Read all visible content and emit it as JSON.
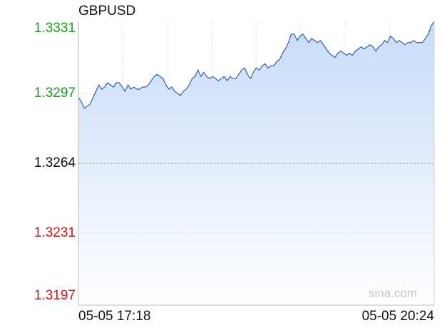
{
  "chart_data": {
    "type": "area-line",
    "title": "GBPUSD",
    "categories": [
      "05-05 17:18",
      null,
      null,
      null,
      null,
      null,
      null,
      null,
      null,
      null,
      null,
      null,
      null,
      null,
      null,
      null,
      null,
      null,
      null,
      null,
      null,
      null,
      null,
      null,
      null,
      null,
      null,
      null,
      null,
      null,
      null,
      null,
      null,
      null,
      null,
      null,
      null,
      null,
      null,
      null,
      null,
      null,
      null,
      null,
      null,
      null,
      null,
      null,
      null,
      null,
      null,
      null,
      null,
      null,
      null,
      null,
      null,
      null,
      null,
      null,
      null,
      null,
      null,
      null,
      null,
      null,
      null,
      null,
      null,
      null,
      null,
      null,
      null,
      null,
      null,
      null,
      null,
      null,
      null,
      null,
      null,
      null,
      null,
      null,
      null,
      null,
      null,
      null,
      null,
      null,
      null,
      null,
      null,
      null,
      null,
      null,
      null,
      null,
      null,
      null,
      null,
      null,
      null,
      null,
      null,
      null,
      null,
      null,
      null,
      null,
      null,
      null,
      null,
      null,
      null,
      null,
      null,
      null,
      null,
      null,
      null,
      null,
      "05-05 20:24"
    ],
    "values": [
      1.3295,
      1.3293,
      1.329,
      1.3291,
      1.3292,
      1.3295,
      1.3298,
      1.3301,
      1.3299,
      1.33,
      1.3302,
      1.3301,
      1.33,
      1.3302,
      1.3302,
      1.33,
      1.3298,
      1.3301,
      1.3299,
      1.33,
      1.3299,
      1.3299,
      1.33,
      1.33,
      1.3301,
      1.3303,
      1.3305,
      1.3306,
      1.3305,
      1.3304,
      1.3301,
      1.3299,
      1.33,
      1.3298,
      1.3297,
      1.3296,
      1.3298,
      1.3299,
      1.3301,
      1.3304,
      1.3305,
      1.3308,
      1.3305,
      1.3307,
      1.3305,
      1.3304,
      1.3305,
      1.3304,
      1.3303,
      1.3304,
      1.3305,
      1.3303,
      1.3305,
      1.3304,
      1.3304,
      1.3306,
      1.3308,
      1.3309,
      1.3306,
      1.3304,
      1.3307,
      1.3309,
      1.3308,
      1.331,
      1.3311,
      1.3309,
      1.331,
      1.331,
      1.3312,
      1.3313,
      1.3316,
      1.3318,
      1.3321,
      1.3325,
      1.3325,
      1.3322,
      1.3324,
      1.3325,
      1.3323,
      1.3321,
      1.3323,
      1.3322,
      1.3321,
      1.3322,
      1.332,
      1.3318,
      1.3316,
      1.3315,
      1.3314,
      1.3316,
      1.3317,
      1.3316,
      1.3315,
      1.3316,
      1.3315,
      1.3317,
      1.3318,
      1.3319,
      1.3318,
      1.3319,
      1.332,
      1.3319,
      1.3317,
      1.3319,
      1.332,
      1.3322,
      1.3321,
      1.3324,
      1.3323,
      1.3321,
      1.3322,
      1.3321,
      1.332,
      1.3321,
      1.3321,
      1.3322,
      1.3321,
      1.3321,
      1.3321,
      1.3323,
      1.3325,
      1.3329,
      1.3331
    ],
    "color": "#2e5fae",
    "fill_color": "#c7dbf8",
    "ylim": [
      1.3197,
      1.3331
    ],
    "yticks": [
      1.3331,
      1.3297,
      1.3264,
      1.3231,
      1.3197
    ],
    "ytick_colors": [
      "#19a01a",
      "#19a01a",
      "#111111",
      "#e01010",
      "#e01010"
    ],
    "reference_line": 1.3264,
    "grid": true,
    "watermark": "sina.com"
  }
}
